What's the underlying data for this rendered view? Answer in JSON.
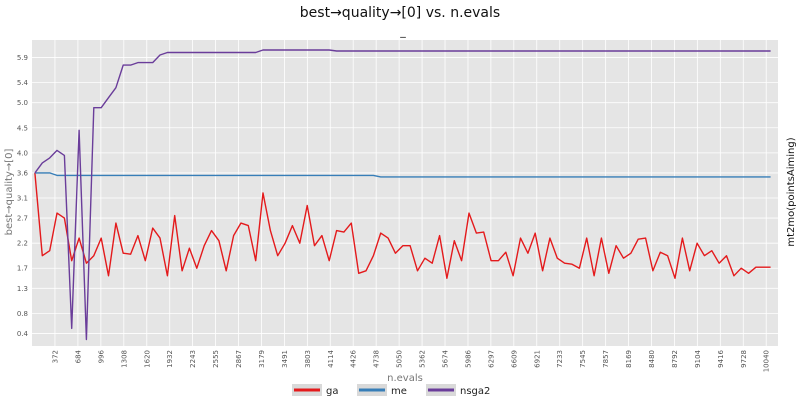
{
  "chart_data": {
    "type": "line",
    "title": "best→quality→[0] vs. n.evals",
    "subtitle": "_",
    "xlabel": "n.evals",
    "ylabel": "best→quality→[0]",
    "right_label": "mt2mo(pointsAiming)",
    "xlim": [
      60,
      10200
    ],
    "ylim": [
      0.15,
      6.25
    ],
    "x_ticks": [
      "372",
      "684",
      "996",
      "1308",
      "1620",
      "1932",
      "2243",
      "2555",
      "2867",
      "3179",
      "3491",
      "3803",
      "4114",
      "4426",
      "4738",
      "5050",
      "5362",
      "5674",
      "5986",
      "6297",
      "6609",
      "6921",
      "7233",
      "7545",
      "7857",
      "8169",
      "8480",
      "8792",
      "9104",
      "9416",
      "9728",
      "10040"
    ],
    "y_ticks": [
      "0.4",
      "0.8",
      "1.3",
      "1.7",
      "2.2",
      "2.7",
      "3.1",
      "3.6",
      "4.0",
      "4.5",
      "5.0",
      "5.4",
      "5.9"
    ],
    "grid": true,
    "legend_position": "bottom",
    "colors": {
      "ga": "#e41a1c",
      "me": "#377eb8",
      "nsga2": "#6a3d9a"
    },
    "series": [
      {
        "name": "ga",
        "x": [
          100,
          200,
          300,
          400,
          500,
          600,
          700,
          800,
          900,
          1000,
          1100,
          1200,
          1300,
          1400,
          1500,
          1600,
          1700,
          1800,
          1900,
          2000,
          2100,
          2200,
          2300,
          2400,
          2500,
          2600,
          2700,
          2800,
          2900,
          3000,
          3100,
          3200,
          3300,
          3400,
          3500,
          3600,
          3700,
          3800,
          3900,
          4000,
          4100,
          4200,
          4300,
          4400,
          4500,
          4600,
          4700,
          4800,
          4900,
          5000,
          5100,
          5200,
          5300,
          5400,
          5500,
          5600,
          5700,
          5800,
          5900,
          6000,
          6100,
          6200,
          6300,
          6400,
          6500,
          6600,
          6700,
          6800,
          6900,
          7000,
          7100,
          7200,
          7300,
          7400,
          7500,
          7600,
          7700,
          7800,
          7900,
          8000,
          8100,
          8200,
          8300,
          8400,
          8500,
          8600,
          8700,
          8800,
          8900,
          9000,
          9100,
          9200,
          9300,
          9400,
          9500,
          9600,
          9700,
          9800,
          9900,
          10000,
          10100
        ],
        "values": [
          3.6,
          1.95,
          2.05,
          2.8,
          2.7,
          1.85,
          2.3,
          1.8,
          1.95,
          2.3,
          1.55,
          2.6,
          2.0,
          1.98,
          2.35,
          1.85,
          2.5,
          2.3,
          1.55,
          2.75,
          1.65,
          2.1,
          1.7,
          2.15,
          2.45,
          2.25,
          1.65,
          2.35,
          2.6,
          2.55,
          1.85,
          3.2,
          2.45,
          1.95,
          2.2,
          2.55,
          2.2,
          2.95,
          2.15,
          2.35,
          1.85,
          2.45,
          2.42,
          2.6,
          1.6,
          1.65,
          1.95,
          2.4,
          2.3,
          2.0,
          2.15,
          2.15,
          1.65,
          1.9,
          1.8,
          2.35,
          1.5,
          2.25,
          1.85,
          2.8,
          2.4,
          2.42,
          1.85,
          1.85,
          2.02,
          1.55,
          2.3,
          2.0,
          2.4,
          1.65,
          2.3,
          1.9,
          1.8,
          1.78,
          1.7,
          2.3,
          1.55,
          2.3,
          1.6,
          2.15,
          1.9,
          2.0,
          2.28,
          2.3,
          1.65,
          2.02,
          1.95,
          1.5,
          2.3,
          1.65,
          2.2,
          1.95,
          2.05,
          1.8,
          1.95,
          1.55,
          1.7,
          1.6,
          1.72,
          1.72,
          1.72
        ]
      },
      {
        "name": "me",
        "x": [
          100,
          300,
          400,
          600,
          1000,
          2000,
          3000,
          4000,
          4700,
          4800,
          5500,
          6500,
          7500,
          8500,
          9500,
          10100
        ],
        "values": [
          3.6,
          3.6,
          3.55,
          3.55,
          3.55,
          3.55,
          3.55,
          3.55,
          3.55,
          3.52,
          3.52,
          3.52,
          3.52,
          3.52,
          3.52,
          3.52
        ]
      },
      {
        "name": "nsga2",
        "x": [
          100,
          200,
          300,
          400,
          500,
          600,
          700,
          800,
          900,
          1000,
          1100,
          1200,
          1300,
          1400,
          1500,
          1600,
          1700,
          1800,
          1900,
          2000,
          2500,
          3000,
          3100,
          3200,
          4000,
          4100,
          4200,
          5000,
          6000,
          7000,
          8000,
          9000,
          10000,
          10100
        ],
        "values": [
          3.6,
          3.8,
          3.9,
          4.05,
          3.95,
          0.5,
          4.45,
          0.28,
          4.9,
          4.9,
          5.1,
          5.3,
          5.75,
          5.75,
          5.8,
          5.8,
          5.8,
          5.95,
          6.0,
          6.0,
          6.0,
          6.0,
          6.0,
          6.05,
          6.05,
          6.05,
          6.03,
          6.03,
          6.03,
          6.03,
          6.03,
          6.03,
          6.03,
          6.03
        ]
      }
    ]
  }
}
